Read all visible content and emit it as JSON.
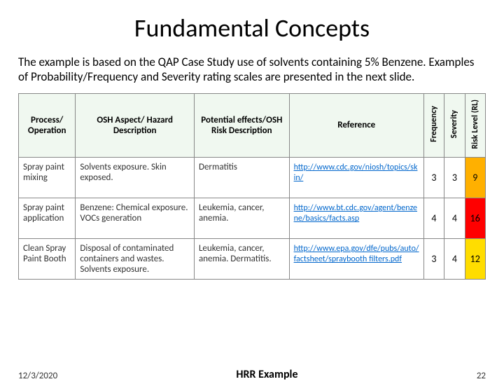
{
  "title": "Fundamental Concepts",
  "description": "The example is based on the QAP Case Study use of solvents containing 5% Benzene. Examples of Probability/Frequency and Severity rating scales are presented in the next slide.",
  "table": {
    "headers": {
      "process": "Process/ Operation",
      "hazard": "OSH Aspect/ Hazard Description",
      "effects": "Potential effects/OSH Risk Description",
      "reference": "Reference",
      "frequency": "Frequency",
      "severity": "Severity",
      "risklevel": "Risk Level (RL)"
    },
    "rows": [
      {
        "process": "Spray paint mixing",
        "hazard": "Solvents exposure. Skin exposed.",
        "effects": "Dermatitis",
        "reference": "http://www.cdc.gov/niosh/topics/skin/",
        "frequency": "3",
        "severity": "3",
        "risklevel": "9",
        "rl_class": "rl-9"
      },
      {
        "process": "Spray paint application",
        "hazard": "Benzene: Chemical exposure. VOCs generation",
        "effects": "Leukemia, cancer, anemia.",
        "reference": "http://www.bt.cdc.gov/agent/benzene/basics/facts.asp",
        "frequency": "4",
        "severity": "4",
        "risklevel": "16",
        "rl_class": "rl-16"
      },
      {
        "process": "Clean Spray Paint Booth",
        "hazard": "Disposal of contaminated containers and wastes. Solvents exposure.",
        "effects": "Leukemia, cancer, anemia. Dermatitis.",
        "reference": "http://www.epa.gov/dfe/pubs/auto/factsheet/spraybooth filters.pdf",
        "frequency": "3",
        "severity": "4",
        "risklevel": "12",
        "rl_class": "rl-12"
      }
    ]
  },
  "footer": {
    "date": "12/3/2020",
    "caption": "HRR Example",
    "page": "22"
  },
  "colors": {
    "header_bg": "#f0f8f0",
    "link": "#0066cc",
    "rl_orange": "#ffb000",
    "rl_red": "#ff0000",
    "rl_yellow": "#ffdd00",
    "border": "#888888",
    "background": "#ffffff"
  }
}
